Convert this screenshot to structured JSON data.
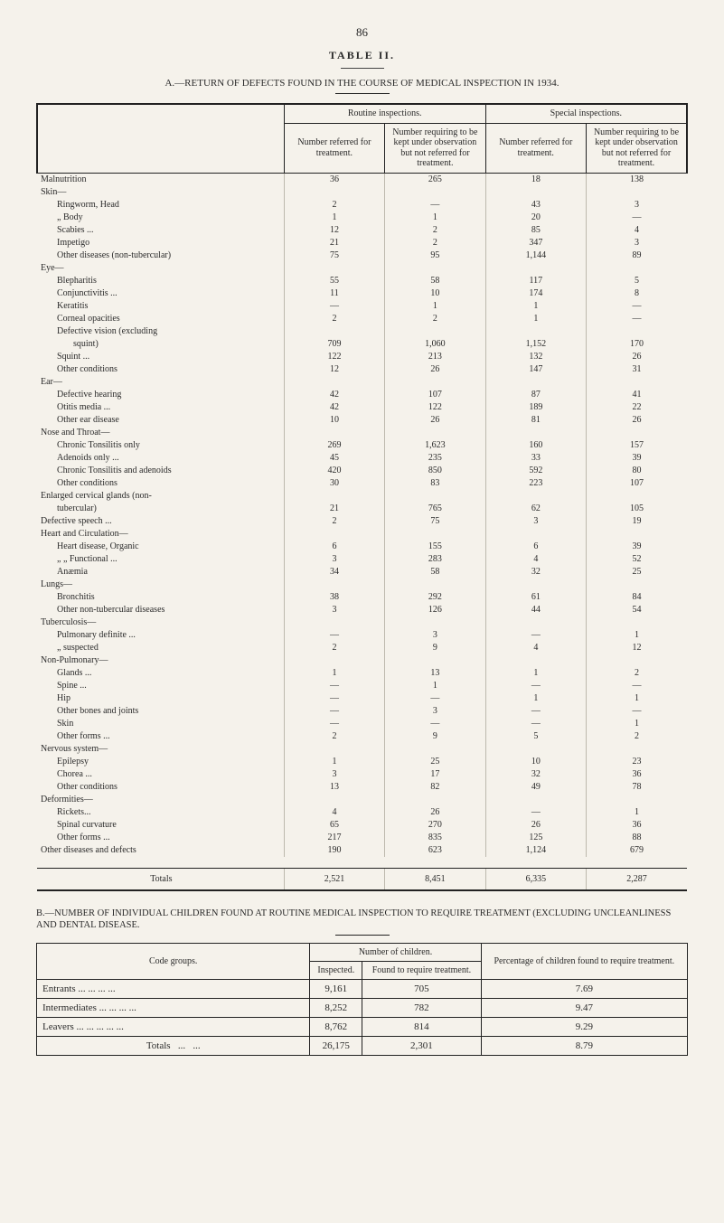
{
  "page_number": "86",
  "table_title": "TABLE II.",
  "section_a_title": "A.—RETURN OF DEFECTS FOUND IN THE COURSE OF MEDICAL INSPECTION IN 1934.",
  "group_headers": {
    "routine": "Routine inspections.",
    "special": "Special inspections."
  },
  "sub_headers": {
    "ref": "Number referred for treatment.",
    "obs": "Number requiring to be kept under observation but not referred for treatment."
  },
  "rows": [
    {
      "lvl": 0,
      "label": "Malnutrition",
      "v": [
        "36",
        "265",
        "18",
        "138"
      ]
    },
    {
      "lvl": 0,
      "label": "Skin—",
      "v": [
        "",
        "",
        "",
        ""
      ]
    },
    {
      "lvl": 1,
      "label": "Ringworm, Head",
      "v": [
        "2",
        "—",
        "43",
        "3"
      ]
    },
    {
      "lvl": 1,
      "label": "   „        Body",
      "v": [
        "1",
        "1",
        "20",
        "—"
      ]
    },
    {
      "lvl": 1,
      "label": "Scabies ...",
      "v": [
        "12",
        "2",
        "85",
        "4"
      ]
    },
    {
      "lvl": 1,
      "label": "Impetigo",
      "v": [
        "21",
        "2",
        "347",
        "3"
      ]
    },
    {
      "lvl": 1,
      "label": "Other diseases (non-tubercular)",
      "v": [
        "75",
        "95",
        "1,144",
        "89"
      ]
    },
    {
      "lvl": 0,
      "label": "Eye—",
      "v": [
        "",
        "",
        "",
        ""
      ]
    },
    {
      "lvl": 1,
      "label": "Blepharitis",
      "v": [
        "55",
        "58",
        "117",
        "5"
      ]
    },
    {
      "lvl": 1,
      "label": "Conjunctivitis ...",
      "v": [
        "11",
        "10",
        "174",
        "8"
      ]
    },
    {
      "lvl": 1,
      "label": "Keratitis",
      "v": [
        "—",
        "1",
        "1",
        "—"
      ]
    },
    {
      "lvl": 1,
      "label": "Corneal opacities",
      "v": [
        "2",
        "2",
        "1",
        "—"
      ]
    },
    {
      "lvl": 1,
      "label": "Defective vision (excluding",
      "v": [
        "",
        "",
        "",
        ""
      ]
    },
    {
      "lvl": 2,
      "label": "squint)",
      "v": [
        "709",
        "1,060",
        "1,152",
        "170"
      ]
    },
    {
      "lvl": 1,
      "label": "Squint ...",
      "v": [
        "122",
        "213",
        "132",
        "26"
      ]
    },
    {
      "lvl": 1,
      "label": "Other conditions",
      "v": [
        "12",
        "26",
        "147",
        "31"
      ]
    },
    {
      "lvl": 0,
      "label": "Ear—",
      "v": [
        "",
        "",
        "",
        ""
      ]
    },
    {
      "lvl": 1,
      "label": "Defective hearing",
      "v": [
        "42",
        "107",
        "87",
        "41"
      ]
    },
    {
      "lvl": 1,
      "label": "Otitis media ...",
      "v": [
        "42",
        "122",
        "189",
        "22"
      ]
    },
    {
      "lvl": 1,
      "label": "Other ear disease",
      "v": [
        "10",
        "26",
        "81",
        "26"
      ]
    },
    {
      "lvl": 0,
      "label": "Nose and Throat—",
      "v": [
        "",
        "",
        "",
        ""
      ]
    },
    {
      "lvl": 1,
      "label": "Chronic Tonsilitis only",
      "v": [
        "269",
        "1,623",
        "160",
        "157"
      ]
    },
    {
      "lvl": 1,
      "label": "Adenoids only ...",
      "v": [
        "45",
        "235",
        "33",
        "39"
      ]
    },
    {
      "lvl": 1,
      "label": "Chronic Tonsilitis and adenoids",
      "v": [
        "420",
        "850",
        "592",
        "80"
      ]
    },
    {
      "lvl": 1,
      "label": "Other conditions",
      "v": [
        "30",
        "83",
        "223",
        "107"
      ]
    },
    {
      "lvl": 0,
      "label": "Enlarged cervical glands (non-",
      "v": [
        "",
        "",
        "",
        ""
      ]
    },
    {
      "lvl": 1,
      "label": "tubercular)",
      "v": [
        "21",
        "765",
        "62",
        "105"
      ]
    },
    {
      "lvl": 0,
      "label": "Defective speech ...",
      "v": [
        "2",
        "75",
        "3",
        "19"
      ]
    },
    {
      "lvl": 0,
      "label": "Heart and Circulation—",
      "v": [
        "",
        "",
        "",
        ""
      ]
    },
    {
      "lvl": 1,
      "label": "Heart disease, Organic",
      "v": [
        "6",
        "155",
        "6",
        "39"
      ]
    },
    {
      "lvl": 1,
      "label": "   „        „      Functional ...",
      "v": [
        "3",
        "283",
        "4",
        "52"
      ]
    },
    {
      "lvl": 1,
      "label": "Anæmia",
      "v": [
        "34",
        "58",
        "32",
        "25"
      ]
    },
    {
      "lvl": 0,
      "label": "Lungs—",
      "v": [
        "",
        "",
        "",
        ""
      ]
    },
    {
      "lvl": 1,
      "label": "Bronchitis",
      "v": [
        "38",
        "292",
        "61",
        "84"
      ]
    },
    {
      "lvl": 1,
      "label": "Other non-tubercular diseases",
      "v": [
        "3",
        "126",
        "44",
        "54"
      ]
    },
    {
      "lvl": 0,
      "label": "Tuberculosis—",
      "v": [
        "",
        "",
        "",
        ""
      ]
    },
    {
      "lvl": 1,
      "label": "Pulmonary definite ...",
      "v": [
        "—",
        "3",
        "—",
        "1"
      ]
    },
    {
      "lvl": 1,
      "label": "   „        suspected",
      "v": [
        "2",
        "9",
        "4",
        "12"
      ]
    },
    {
      "lvl": 0,
      "label": "Non-Pulmonary—",
      "v": [
        "",
        "",
        "",
        ""
      ]
    },
    {
      "lvl": 1,
      "label": "Glands ...",
      "v": [
        "1",
        "13",
        "1",
        "2"
      ]
    },
    {
      "lvl": 1,
      "label": "Spine ...",
      "v": [
        "—",
        "1",
        "—",
        "—"
      ]
    },
    {
      "lvl": 1,
      "label": "Hip",
      "v": [
        "—",
        "—",
        "1",
        "1"
      ]
    },
    {
      "lvl": 1,
      "label": "Other bones and joints",
      "v": [
        "—",
        "3",
        "—",
        "—"
      ]
    },
    {
      "lvl": 1,
      "label": "Skin",
      "v": [
        "—",
        "—",
        "—",
        "1"
      ]
    },
    {
      "lvl": 1,
      "label": "Other forms ...",
      "v": [
        "2",
        "9",
        "5",
        "2"
      ]
    },
    {
      "lvl": 0,
      "label": "Nervous system—",
      "v": [
        "",
        "",
        "",
        ""
      ]
    },
    {
      "lvl": 1,
      "label": "Epilepsy",
      "v": [
        "1",
        "25",
        "10",
        "23"
      ]
    },
    {
      "lvl": 1,
      "label": "Chorea ...",
      "v": [
        "3",
        "17",
        "32",
        "36"
      ]
    },
    {
      "lvl": 1,
      "label": "Other conditions",
      "v": [
        "13",
        "82",
        "49",
        "78"
      ]
    },
    {
      "lvl": 0,
      "label": "Deformities—",
      "v": [
        "",
        "",
        "",
        ""
      ]
    },
    {
      "lvl": 1,
      "label": "Rickets...",
      "v": [
        "4",
        "26",
        "—",
        "1"
      ]
    },
    {
      "lvl": 1,
      "label": "Spinal curvature",
      "v": [
        "65",
        "270",
        "26",
        "36"
      ]
    },
    {
      "lvl": 1,
      "label": "Other forms ...",
      "v": [
        "217",
        "835",
        "125",
        "88"
      ]
    },
    {
      "lvl": 0,
      "label": "Other diseases and defects",
      "v": [
        "190",
        "623",
        "1,124",
        "679"
      ]
    }
  ],
  "totals": {
    "label": "Totals",
    "v": [
      "2,521",
      "8,451",
      "6,335",
      "2,287"
    ]
  },
  "section_b_title": "B.—NUMBER OF INDIVIDUAL CHILDREN FOUND AT ROUTINE MEDICAL INSPECTION TO REQUIRE TREATMENT (EXCLUDING UNCLEANLINESS AND DENTAL DISEASE.",
  "b_headers": {
    "code": "Code groups.",
    "numchildren": "Number of children.",
    "inspected": "Inspected.",
    "found": "Found to require treatment.",
    "pct": "Percentage of children found to require treatment."
  },
  "b_rows": [
    {
      "label": "Entrants",
      "v": [
        "9,161",
        "705",
        "7.69"
      ]
    },
    {
      "label": "Intermediates",
      "v": [
        "8,252",
        "782",
        "9.47"
      ]
    },
    {
      "label": "Leavers ...",
      "v": [
        "8,762",
        "814",
        "9.29"
      ]
    }
  ],
  "b_totals": {
    "label": "Totals",
    "v": [
      "26,175",
      "2,301",
      "8.79"
    ]
  }
}
